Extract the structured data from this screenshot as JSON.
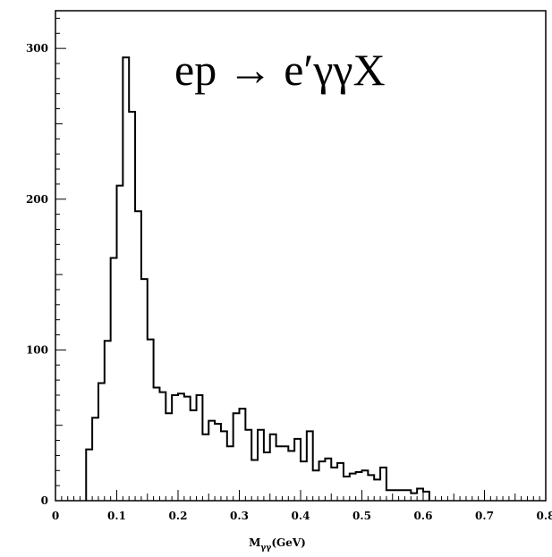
{
  "chart_data": {
    "type": "histogram",
    "title": "",
    "annotation": "ep → e′γγX",
    "xlabel_main": "M",
    "xlabel_sub": "γγ",
    "xlabel_unit": "(GeV)",
    "ylabel": "",
    "xlim": [
      0,
      0.8
    ],
    "ylim": [
      0,
      325
    ],
    "xticks": [
      "0",
      "0.1",
      "0.2",
      "0.3",
      "0.4",
      "0.5",
      "0.6",
      "0.7",
      "0.8"
    ],
    "yticks": [
      "0",
      "100",
      "200",
      "300"
    ],
    "bin_width": 0.01,
    "bin_start": 0.05,
    "values": [
      34,
      55,
      78,
      106,
      161,
      209,
      294,
      258,
      192,
      147,
      107,
      75,
      72,
      58,
      70,
      71,
      69,
      60,
      70,
      44,
      53,
      51,
      46,
      36,
      58,
      61,
      47,
      27,
      47,
      32,
      44,
      36,
      36,
      33,
      41,
      26,
      46,
      20,
      26,
      28,
      22,
      25,
      16,
      18,
      19,
      20,
      17,
      14,
      22,
      7,
      7,
      7,
      7,
      5,
      8,
      6
    ],
    "grid": false,
    "legend": "none"
  }
}
